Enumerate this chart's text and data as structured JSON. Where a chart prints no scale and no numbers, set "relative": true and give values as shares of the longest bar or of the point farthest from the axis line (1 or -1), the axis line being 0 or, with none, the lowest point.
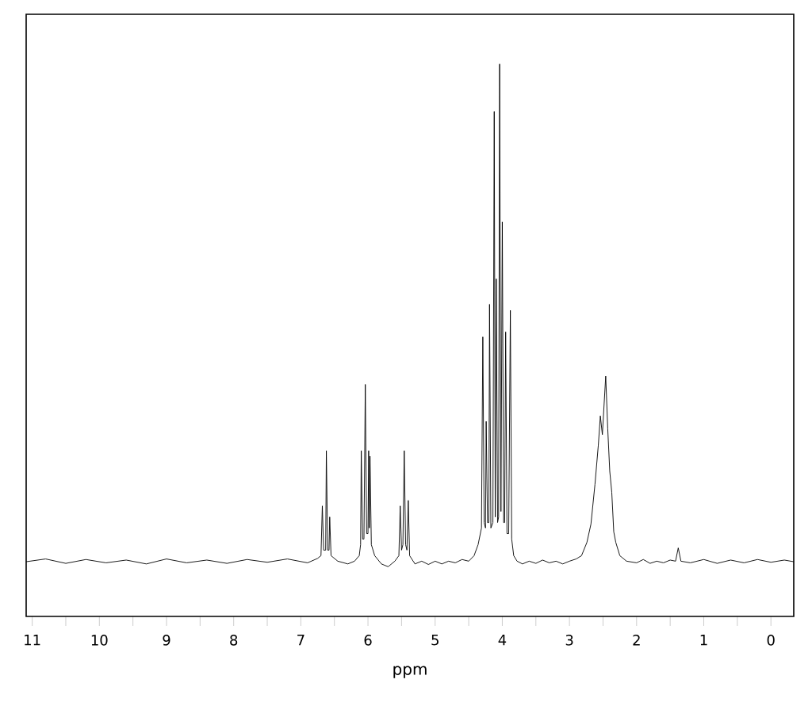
{
  "chart_data": {
    "type": "line",
    "xlabel": "ppm",
    "color": "#000000",
    "relative": true,
    "xlim": [
      11.09,
      -0.34
    ],
    "xticks": [
      11,
      {
        "value": 10.5,
        "label": null
      },
      10,
      {
        "value": 9.5,
        "label": null
      },
      9,
      {
        "value": 8.5,
        "label": null
      },
      8,
      {
        "value": 7.5,
        "label": null
      },
      7,
      {
        "value": 6.5,
        "label": null
      },
      6,
      {
        "value": 5.5,
        "label": null
      },
      5,
      {
        "value": 4.5,
        "label": null
      },
      4,
      {
        "value": 3.5,
        "label": null
      },
      3,
      {
        "value": 2.5,
        "label": null
      },
      2,
      {
        "value": 1.5,
        "label": null
      },
      1,
      {
        "value": 0.5,
        "label": null
      },
      0
    ],
    "x": [
      11.09,
      10.8,
      10.5,
      10.2,
      9.9,
      9.6,
      9.3,
      9.0,
      8.7,
      8.4,
      8.1,
      7.8,
      7.5,
      7.2,
      6.9,
      6.75,
      6.7,
      6.68,
      6.66,
      6.63,
      6.62,
      6.6,
      6.58,
      6.57,
      6.55,
      6.45,
      6.3,
      6.2,
      6.13,
      6.11,
      6.1,
      6.08,
      6.06,
      6.04,
      6.02,
      6.0,
      5.99,
      5.98,
      5.97,
      5.95,
      5.9,
      5.8,
      5.7,
      5.6,
      5.54,
      5.52,
      5.5,
      5.48,
      5.46,
      5.44,
      5.42,
      5.4,
      5.38,
      5.3,
      5.2,
      5.1,
      5.0,
      4.9,
      4.8,
      4.7,
      4.6,
      4.5,
      4.42,
      4.36,
      4.31,
      4.29,
      4.27,
      4.25,
      4.24,
      4.22,
      4.2,
      4.19,
      4.17,
      4.14,
      4.12,
      4.105,
      4.09,
      4.07,
      4.055,
      4.04,
      4.02,
      4.0,
      3.98,
      3.965,
      3.95,
      3.93,
      3.905,
      3.88,
      3.86,
      3.83,
      3.78,
      3.7,
      3.6,
      3.5,
      3.4,
      3.3,
      3.2,
      3.1,
      3.0,
      2.9,
      2.82,
      2.74,
      2.68,
      2.62,
      2.57,
      2.54,
      2.51,
      2.46,
      2.43,
      2.4,
      2.37,
      2.34,
      2.31,
      2.25,
      2.15,
      2.0,
      1.9,
      1.8,
      1.7,
      1.6,
      1.5,
      1.42,
      1.38,
      1.34,
      1.2,
      1.0,
      0.8,
      0.6,
      0.4,
      0.2,
      0.0,
      -0.2,
      -0.34
    ],
    "values": [
      0.099,
      0.104,
      0.096,
      0.103,
      0.097,
      0.102,
      0.095,
      0.104,
      0.097,
      0.102,
      0.096,
      0.103,
      0.098,
      0.104,
      0.097,
      0.105,
      0.11,
      0.2,
      0.12,
      0.12,
      0.3,
      0.12,
      0.12,
      0.18,
      0.11,
      0.1,
      0.095,
      0.1,
      0.11,
      0.13,
      0.3,
      0.14,
      0.14,
      0.42,
      0.15,
      0.15,
      0.3,
      0.16,
      0.29,
      0.13,
      0.11,
      0.095,
      0.09,
      0.1,
      0.11,
      0.2,
      0.12,
      0.13,
      0.3,
      0.13,
      0.12,
      0.21,
      0.11,
      0.095,
      0.1,
      0.094,
      0.1,
      0.095,
      0.1,
      0.097,
      0.103,
      0.1,
      0.11,
      0.13,
      0.16,
      0.506,
      0.17,
      0.16,
      0.353,
      0.17,
      0.17,
      0.565,
      0.16,
      0.17,
      0.914,
      0.18,
      0.611,
      0.17,
      0.18,
      1.0,
      0.19,
      0.714,
      0.17,
      0.17,
      0.515,
      0.15,
      0.15,
      0.554,
      0.14,
      0.11,
      0.1,
      0.095,
      0.1,
      0.096,
      0.102,
      0.097,
      0.1,
      0.095,
      0.1,
      0.104,
      0.11,
      0.134,
      0.167,
      0.239,
      0.31,
      0.363,
      0.329,
      0.435,
      0.34,
      0.263,
      0.225,
      0.153,
      0.134,
      0.11,
      0.1,
      0.097,
      0.103,
      0.096,
      0.1,
      0.097,
      0.102,
      0.1,
      0.124,
      0.1,
      0.097,
      0.103,
      0.096,
      0.102,
      0.097,
      0.103,
      0.098,
      0.102,
      0.099
    ]
  }
}
